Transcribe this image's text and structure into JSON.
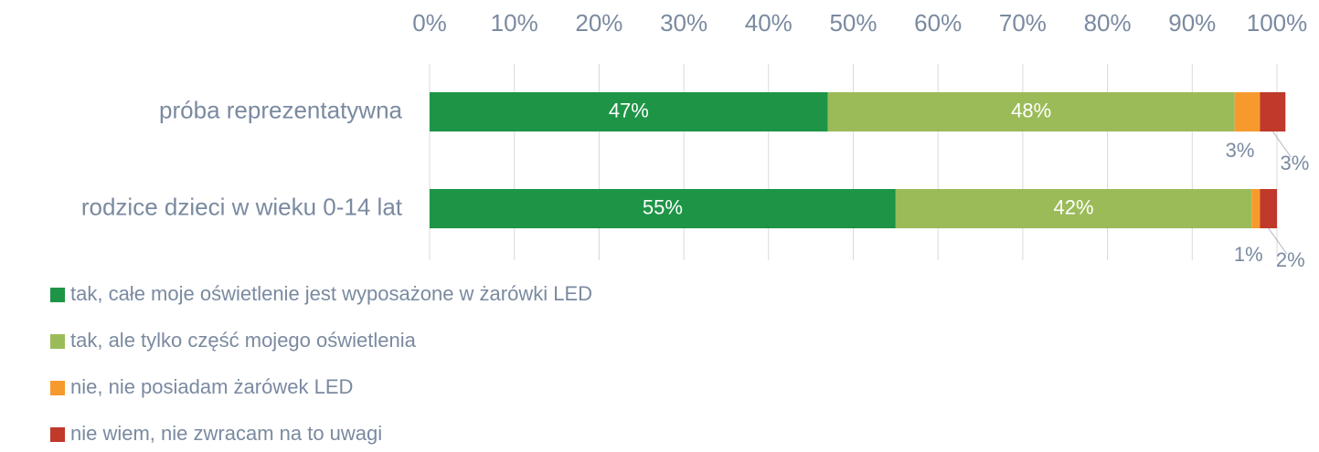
{
  "chart_data": {
    "type": "stacked_barh",
    "categories": [
      "próba reprezentatywna",
      "rodzice dzieci w wieku 0-14 lat"
    ],
    "series": [
      {
        "name": "tak, całe moje oświetlenie jest wyposażone w żarówki LED",
        "color": "#1e9447",
        "values": [
          47,
          55
        ],
        "value_labels": [
          "47%",
          "55%"
        ]
      },
      {
        "name": "tak, ale tylko część mojego oświetlenia",
        "color": "#9bbb59",
        "values": [
          48,
          42
        ],
        "value_labels": [
          "48%",
          "42%"
        ]
      },
      {
        "name": "nie, nie posiadam żarówek LED",
        "color": "#f79a2e",
        "values": [
          3,
          1
        ],
        "value_labels": [
          "3%",
          "1%"
        ]
      },
      {
        "name": "nie wiem, nie zwracam na to uwagi",
        "color": "#c0392b",
        "values": [
          3,
          2
        ],
        "value_labels": [
          "3%",
          "2%"
        ]
      }
    ],
    "xlim": [
      0,
      100
    ],
    "xticks": [
      {
        "value": 0,
        "label": "0%"
      },
      {
        "value": 10,
        "label": "10%"
      },
      {
        "value": 20,
        "label": "20%"
      },
      {
        "value": 30,
        "label": "30%"
      },
      {
        "value": 40,
        "label": "40%"
      },
      {
        "value": 50,
        "label": "50%"
      },
      {
        "value": 60,
        "label": "60%"
      },
      {
        "value": 70,
        "label": "70%"
      },
      {
        "value": 80,
        "label": "80%"
      },
      {
        "value": 90,
        "label": "90%"
      },
      {
        "value": 100,
        "label": "100%"
      }
    ],
    "grid": true
  }
}
